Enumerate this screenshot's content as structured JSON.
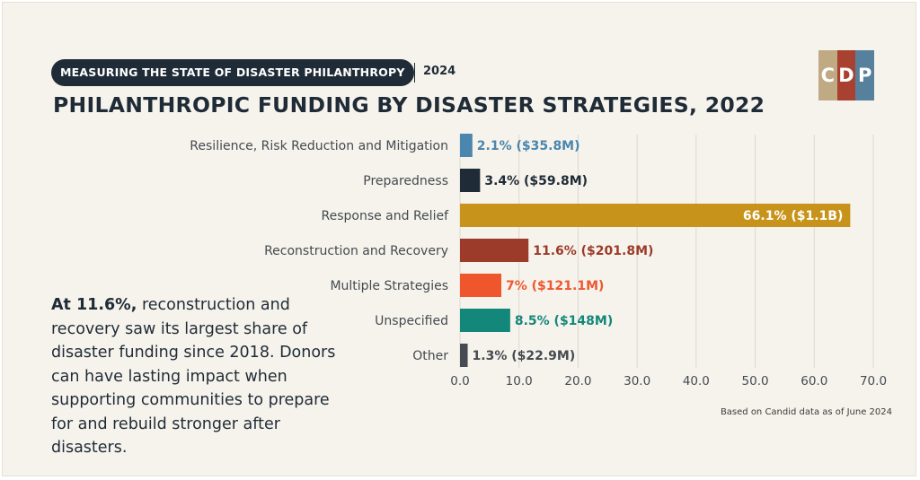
{
  "header": {
    "badge": "MEASURING THE STATE OF DISASTER PHILANTHROPY",
    "year": "2024",
    "title": "PHILANTHROPIC FUNDING BY DISASTER STRATEGIES, 2022"
  },
  "logo": {
    "letters": [
      "C",
      "D",
      "P"
    ],
    "colors": [
      "#c0aa84",
      "#a8412f",
      "#56809b"
    ]
  },
  "note": {
    "highlight": "At 11.6%,",
    "body": "reconstruction and recovery saw its largest share of disaster funding since 2018. Donors can have lasting impact when supporting communities to prepare for and rebuild stronger after disasters."
  },
  "source": "Based on Candid data as of June 2024",
  "chart_data": {
    "type": "bar",
    "orientation": "horizontal",
    "categories": [
      "Resilience, Risk Reduction and Mitigation",
      "Preparedness",
      "Response and Relief",
      "Reconstruction and Recovery",
      "Multiple Strategies",
      "Unspecified",
      "Other"
    ],
    "values": [
      2.1,
      3.4,
      66.1,
      11.6,
      7,
      8.5,
      1.3
    ],
    "data_labels": [
      "2.1% ($35.8M)",
      "3.4% ($59.8M)",
      "66.1% ($1.1B)",
      "11.6% ($201.8M)",
      "7% ($121.1M)",
      "8.5% ($148M)",
      "1.3% ($22.9M)"
    ],
    "colors": [
      "#4a86ad",
      "#1f2b36",
      "#c8931a",
      "#9c3b2a",
      "#f0562e",
      "#13877a",
      "#454b50"
    ],
    "label_colors": [
      "#4a86ad",
      "#1f2b36",
      "#ffffff",
      "#9c3b2a",
      "#f0562e",
      "#13877a",
      "#454b50"
    ],
    "label_inside": [
      false,
      false,
      true,
      false,
      false,
      false,
      false
    ],
    "xlim": [
      0,
      70
    ],
    "x_ticks": [
      "0.0",
      "10.0",
      "20.0",
      "30.0",
      "40.0",
      "50.0",
      "60.0",
      "70.0"
    ],
    "grid": true,
    "xlabel": "",
    "ylabel": ""
  }
}
